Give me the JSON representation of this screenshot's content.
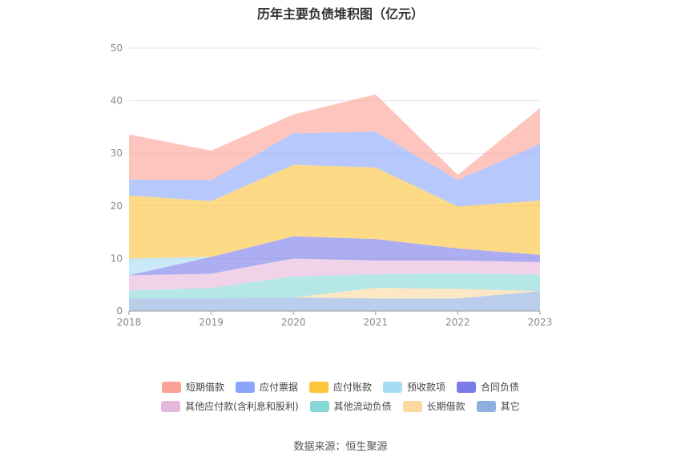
{
  "title": "历年主要负债堆积图（亿元）",
  "source": "数据来源：恒生聚源",
  "chart_data": {
    "type": "area",
    "stacked": true,
    "categories": [
      "2018",
      "2019",
      "2020",
      "2021",
      "2022",
      "2023"
    ],
    "ylim": [
      0,
      50
    ],
    "yticks": [
      "0",
      "10",
      "20",
      "30",
      "40",
      "50"
    ],
    "grid": true,
    "legend_position": "bottom",
    "series": [
      {
        "name": "其它",
        "color": "#8fb0de",
        "values": [
          2.4,
          2.4,
          2.6,
          2.4,
          2.4,
          3.8
        ]
      },
      {
        "name": "长期借款",
        "color": "#fdd9a0",
        "values": [
          0.0,
          0.0,
          0.0,
          2.0,
          1.8,
          0.0
        ]
      },
      {
        "name": "其他流动负债",
        "color": "#88d8d8",
        "values": [
          1.5,
          2.0,
          4.0,
          2.6,
          3.0,
          3.1
        ]
      },
      {
        "name": "其他应付款(含利息和股利)",
        "color": "#e6b8dc",
        "values": [
          2.9,
          2.7,
          3.4,
          2.6,
          2.4,
          2.4
        ]
      },
      {
        "name": "合同负债",
        "color": "#7b7bea",
        "values": [
          0.0,
          3.2,
          4.2,
          4.1,
          2.3,
          1.4
        ]
      },
      {
        "name": "预收款项",
        "color": "#a8dcf5",
        "values": [
          3.2,
          0.0,
          0.0,
          0.0,
          0.0,
          0.0
        ]
      },
      {
        "name": "应付账款",
        "color": "#fcc53b",
        "values": [
          12.0,
          10.6,
          13.6,
          13.6,
          8.0,
          10.3
        ]
      },
      {
        "name": "应付票据",
        "color": "#8aa6fb",
        "values": [
          3.0,
          4.0,
          6.0,
          6.8,
          5.0,
          10.8
        ]
      },
      {
        "name": "短期借款",
        "color": "#fca195",
        "values": [
          8.6,
          5.6,
          3.6,
          7.1,
          1.0,
          6.8
        ]
      }
    ]
  },
  "legend_rows": [
    [
      {
        "name": "短期借款",
        "color": "#fca195"
      },
      {
        "name": "应付票据",
        "color": "#8aa6fb"
      },
      {
        "name": "应付账款",
        "color": "#fcc53b"
      },
      {
        "name": "预收款项",
        "color": "#a8dcf5"
      },
      {
        "name": "合同负债",
        "color": "#7b7bea"
      }
    ],
    [
      {
        "name": "其他应付款(含利息和股利)",
        "color": "#e6b8dc"
      },
      {
        "name": "其他流动负债",
        "color": "#88d8d8"
      },
      {
        "name": "长期借款",
        "color": "#fdd9a0"
      },
      {
        "name": "其它",
        "color": "#8fb0de"
      }
    ]
  ]
}
